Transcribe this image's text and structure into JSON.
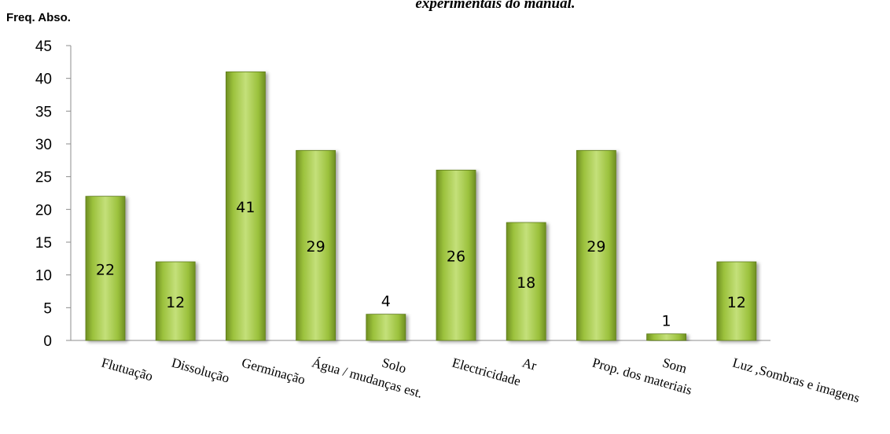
{
  "chart_data": {
    "type": "bar",
    "title": "experimentais do manual.",
    "ylabel": "Freq. Abso.",
    "xlabel": "",
    "categories": [
      "Flutuação",
      "Dissolução",
      "Germinação",
      "Água / mudanças est.",
      "Solo",
      "Electricidade",
      "Ar",
      "Prop. dos materiais",
      "Som",
      "Luz ,Sombras e imagens"
    ],
    "values": [
      22,
      12,
      41,
      29,
      4,
      26,
      18,
      29,
      1,
      12
    ],
    "data_labels": [
      "22",
      "12",
      "41",
      "29",
      "4",
      "26",
      "18",
      "29",
      "1",
      "12"
    ],
    "ylim": [
      0,
      45
    ],
    "yticks": [
      0,
      5,
      10,
      15,
      20,
      25,
      30,
      35,
      40,
      45
    ],
    "grid": false,
    "legend": "none",
    "colors": {
      "bar_light": "#c4e07a",
      "bar_mid": "#9bc13c",
      "bar_dark": "#6f8f22",
      "axis": "#8c8c8c"
    }
  }
}
